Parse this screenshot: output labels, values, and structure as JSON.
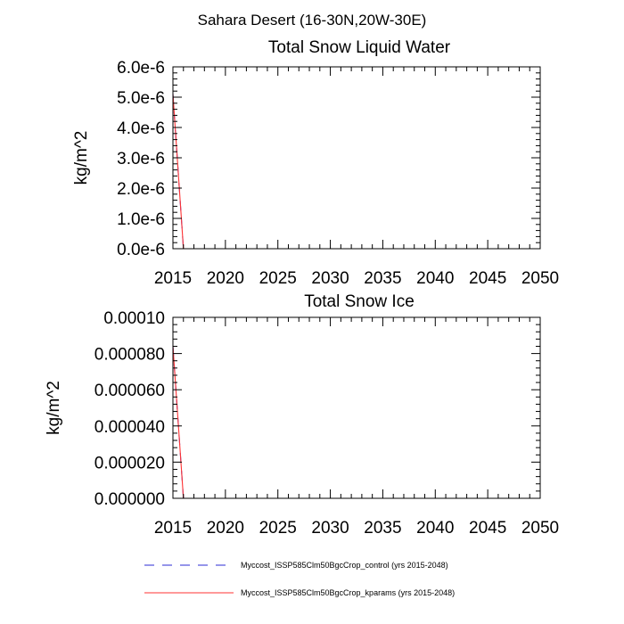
{
  "suptitle": "Sahara Desert (16-30N,20W-30E)",
  "colors": {
    "control": "#2b2bd6",
    "kparams": "#ff3333",
    "axis": "#000000"
  },
  "legend": [
    {
      "label": "Myccost_ISSP585Clm50BgcCrop_control (yrs 2015-2048)",
      "color": "#2b2bd6",
      "dash": "dashed"
    },
    {
      "label": "Myccost_ISSP585Clm50BgcCrop_kparams (yrs 2015-2048)",
      "color": "#ff3333",
      "dash": "solid"
    }
  ],
  "chart_data": [
    {
      "type": "line",
      "title": "Total Snow Liquid Water",
      "ylabel": "kg/m^2",
      "xlabel": "",
      "xlim": [
        2015,
        2050
      ],
      "ylim": [
        0,
        6e-06
      ],
      "xticks": [
        2015,
        2020,
        2025,
        2030,
        2035,
        2040,
        2045,
        2050
      ],
      "xtick_labels": [
        "2015",
        "2020",
        "2025",
        "2030",
        "2035",
        "2040",
        "2045",
        "2050"
      ],
      "yticks": [
        0,
        1e-06,
        2e-06,
        3e-06,
        4e-06,
        5e-06,
        6e-06
      ],
      "ytick_labels": [
        "0.0e-6",
        "1.0e-6",
        "2.0e-6",
        "3.0e-6",
        "4.0e-6",
        "5.0e-6",
        "6.0e-6"
      ],
      "series": [
        {
          "name": "Myccost_ISSP585Clm50BgcCrop_control (yrs 2015-2048)",
          "x": [
            2015,
            2016,
            2048
          ],
          "y": [
            5.1e-06,
            0,
            0
          ]
        },
        {
          "name": "Myccost_ISSP585Clm50BgcCrop_kparams (yrs 2015-2048)",
          "x": [
            2015,
            2016,
            2048
          ],
          "y": [
            5.1e-06,
            0,
            0
          ]
        }
      ]
    },
    {
      "type": "line",
      "title": "Total Snow Ice",
      "ylabel": "kg/m^2",
      "xlabel": "",
      "xlim": [
        2015,
        2050
      ],
      "ylim": [
        0,
        0.0001
      ],
      "xticks": [
        2015,
        2020,
        2025,
        2030,
        2035,
        2040,
        2045,
        2050
      ],
      "xtick_labels": [
        "2015",
        "2020",
        "2025",
        "2030",
        "2035",
        "2040",
        "2045",
        "2050"
      ],
      "yticks": [
        0,
        2e-05,
        4e-05,
        6e-05,
        8e-05,
        0.0001
      ],
      "ytick_labels": [
        "0.000000",
        "0.000020",
        "0.000040",
        "0.000060",
        "0.000080",
        "0.00010"
      ],
      "series": [
        {
          "name": "Myccost_ISSP585Clm50BgcCrop_control (yrs 2015-2048)",
          "x": [
            2015,
            2016,
            2048
          ],
          "y": [
            8.4e-05,
            0,
            0
          ]
        },
        {
          "name": "Myccost_ISSP585Clm50BgcCrop_kparams (yrs 2015-2048)",
          "x": [
            2015,
            2016,
            2048
          ],
          "y": [
            8.4e-05,
            0,
            0
          ]
        }
      ]
    }
  ]
}
